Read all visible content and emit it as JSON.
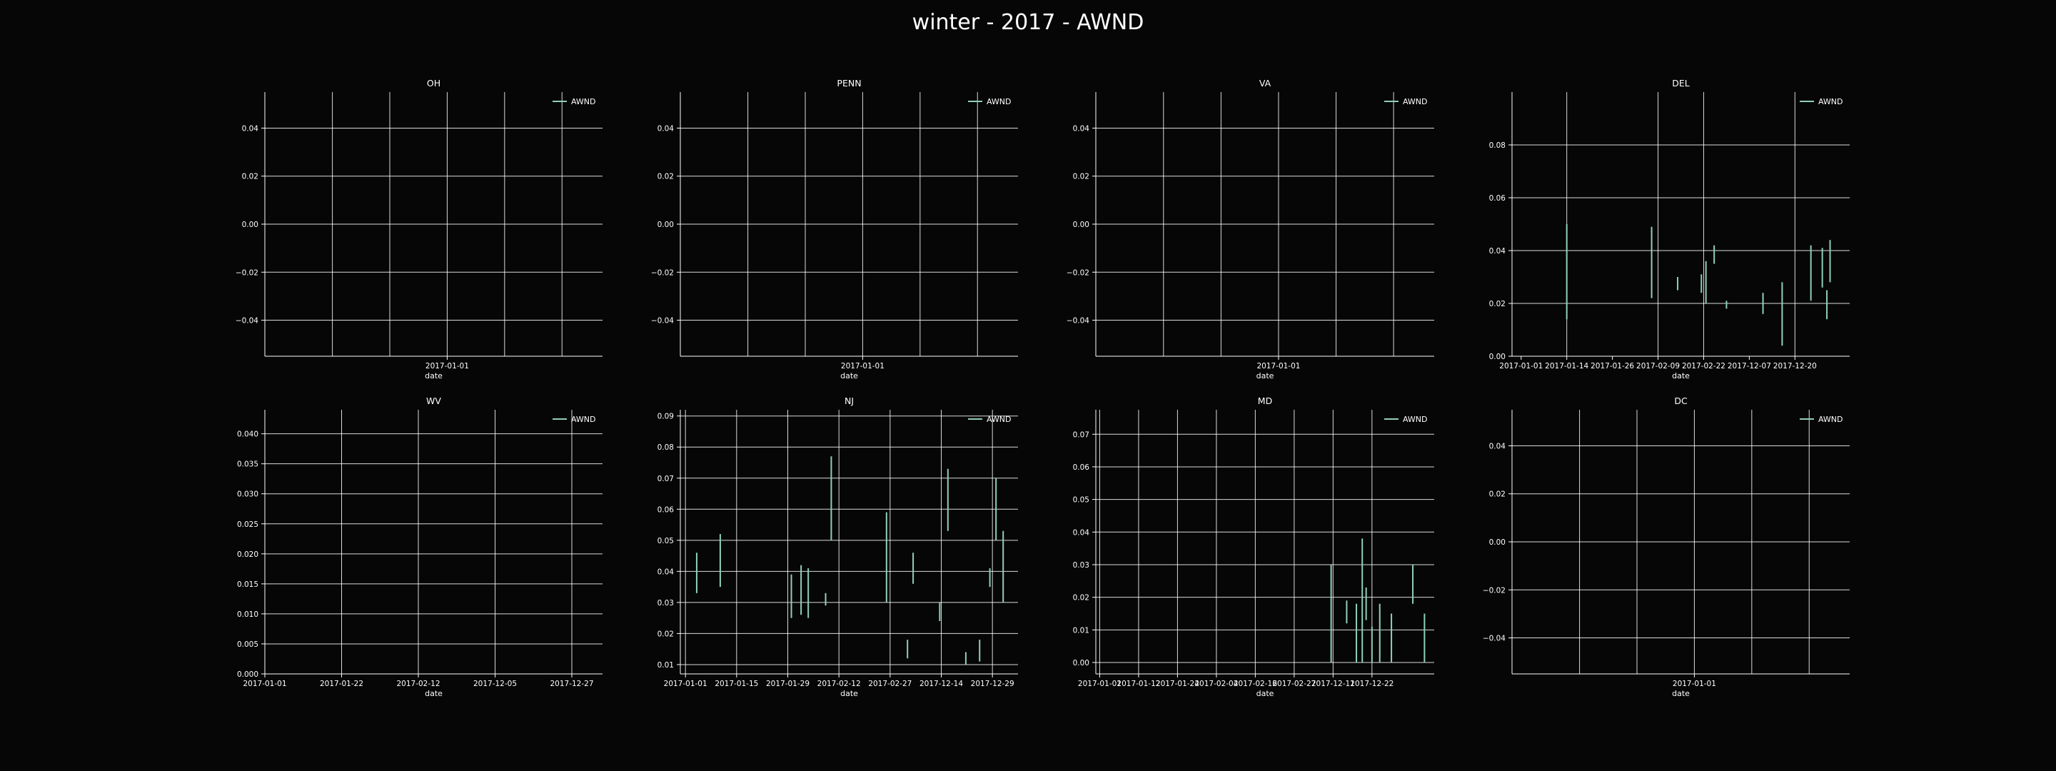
{
  "suptitle": "winter - 2017 - AWND",
  "colors": {
    "background": "#060606",
    "grid": "#ffffff",
    "series": "#8fd0b8",
    "text": "#ffffff"
  },
  "chart_data": [
    {
      "title": "OH",
      "type": "line",
      "xlabel": "date",
      "legend": [
        "AWND"
      ],
      "legend_loc": "top-right",
      "grid": true,
      "xticks": [
        "2017-01-01"
      ],
      "ylim": [
        -0.055,
        0.055
      ],
      "yticks": [
        "−0.04",
        "−0.02",
        "0.00",
        "0.02",
        "0.04"
      ],
      "segments": []
    },
    {
      "title": "PENN",
      "type": "line",
      "xlabel": "date",
      "legend": [
        "AWND"
      ],
      "legend_loc": "top-right",
      "grid": true,
      "xticks": [
        "2017-01-01"
      ],
      "ylim": [
        -0.055,
        0.055
      ],
      "yticks": [
        "−0.04",
        "−0.02",
        "0.00",
        "0.02",
        "0.04"
      ],
      "segments": []
    },
    {
      "title": "VA",
      "type": "line",
      "xlabel": "date",
      "legend": [
        "AWND"
      ],
      "legend_loc": "top-right",
      "grid": true,
      "xticks": [
        "2017-01-01"
      ],
      "ylim": [
        -0.055,
        0.055
      ],
      "yticks": [
        "−0.04",
        "−0.02",
        "0.00",
        "0.02",
        "0.04"
      ],
      "segments": []
    },
    {
      "title": "DEL",
      "type": "line",
      "xlabel": "date",
      "legend": [
        "AWND"
      ],
      "legend_loc": "top-right",
      "grid": true,
      "xticks": [
        "2017-01-01",
        "2017-01-14",
        "2017-01-26",
        "2017-02-09",
        "2017-02-22",
        "2017-12-07",
        "2017-12-20"
      ],
      "ylim": [
        0,
        0.1
      ],
      "yticks": [
        "0.00",
        "0.02",
        "0.04",
        "0.06",
        "0.08"
      ],
      "segments": [
        {
          "x": 1.0,
          "y": [
            0.014,
            0.05
          ]
        },
        {
          "x": 2.86,
          "y": [
            0.022,
            0.049
          ]
        },
        {
          "x": 3.43,
          "y": [
            0.025,
            0.03
          ]
        },
        {
          "x": 3.95,
          "y": [
            0.024,
            0.031
          ]
        },
        {
          "x": 4.05,
          "y": [
            0.02,
            0.036
          ]
        },
        {
          "x": 4.23,
          "y": [
            0.035,
            0.042
          ]
        },
        {
          "x": 4.5,
          "y": [
            0.018,
            0.021
          ]
        },
        {
          "x": 5.3,
          "y": [
            0.016,
            0.024
          ]
        },
        {
          "x": 5.72,
          "y": [
            0.004,
            0.028
          ]
        },
        {
          "x": 6.35,
          "y": [
            0.021,
            0.042
          ]
        },
        {
          "x": 6.6,
          "y": [
            0.026,
            0.041
          ]
        },
        {
          "x": 6.7,
          "y": [
            0.014,
            0.025
          ]
        },
        {
          "x": 6.77,
          "y": [
            0.028,
            0.044
          ]
        }
      ]
    },
    {
      "title": "WV",
      "type": "line",
      "xlabel": "date",
      "legend": [
        "AWND"
      ],
      "legend_loc": "top-right",
      "grid": true,
      "xticks": [
        "2017-01-01",
        "2017-01-22",
        "2017-02-12",
        "2017-12-05",
        "2017-12-27"
      ],
      "ylim": [
        0,
        0.044
      ],
      "yticks": [
        "0.000",
        "0.005",
        "0.010",
        "0.015",
        "0.020",
        "0.025",
        "0.030",
        "0.035",
        "0.040"
      ],
      "segments": []
    },
    {
      "title": "NJ",
      "type": "line",
      "xlabel": "date",
      "legend": [
        "AWND"
      ],
      "legend_loc": "top-right",
      "grid": true,
      "xticks": [
        "2017-01-01",
        "2017-01-15",
        "2017-01-29",
        "2017-02-12",
        "2017-02-27",
        "2017-12-14",
        "2017-12-29"
      ],
      "ylim": [
        0.007,
        0.092
      ],
      "yticks": [
        "0.01",
        "0.02",
        "0.03",
        "0.04",
        "0.05",
        "0.06",
        "0.07",
        "0.08",
        "0.09"
      ],
      "segments": [
        {
          "x": 0.22,
          "y": [
            0.033,
            0.046
          ]
        },
        {
          "x": 0.68,
          "y": [
            0.035,
            0.052
          ]
        },
        {
          "x": 2.07,
          "y": [
            0.025,
            0.039
          ]
        },
        {
          "x": 2.26,
          "y": [
            0.026,
            0.042
          ]
        },
        {
          "x": 2.4,
          "y": [
            0.025,
            0.041
          ]
        },
        {
          "x": 2.74,
          "y": [
            0.029,
            0.033
          ]
        },
        {
          "x": 2.85,
          "y": [
            0.05,
            0.077
          ]
        },
        {
          "x": 3.93,
          "y": [
            0.03,
            0.059
          ]
        },
        {
          "x": 4.34,
          "y": [
            0.012,
            0.018
          ]
        },
        {
          "x": 4.45,
          "y": [
            0.036,
            0.046
          ]
        },
        {
          "x": 4.97,
          "y": [
            0.024,
            0.03
          ]
        },
        {
          "x": 5.13,
          "y": [
            0.053,
            0.073
          ]
        },
        {
          "x": 5.48,
          "y": [
            0.01,
            0.014
          ]
        },
        {
          "x": 5.75,
          "y": [
            0.011,
            0.018
          ]
        },
        {
          "x": 5.95,
          "y": [
            0.035,
            0.041
          ]
        },
        {
          "x": 6.07,
          "y": [
            0.05,
            0.07
          ]
        },
        {
          "x": 6.21,
          "y": [
            0.03,
            0.053
          ]
        }
      ]
    },
    {
      "title": "MD",
      "type": "line",
      "xlabel": "date",
      "legend": [
        "AWND"
      ],
      "legend_loc": "top-right",
      "grid": true,
      "xticks": [
        "2017-01-01",
        "2017-01-12",
        "2017-01-24",
        "2017-02-04",
        "2017-02-16",
        "2017-02-27",
        "2017-12-11",
        "2017-12-22"
      ],
      "ylim": [
        -0.0035,
        0.0775
      ],
      "yticks": [
        "0.00",
        "0.01",
        "0.02",
        "0.03",
        "0.04",
        "0.05",
        "0.06",
        "0.07"
      ],
      "segments": [
        {
          "x": 5.95,
          "y": [
            0.0,
            0.03
          ]
        },
        {
          "x": 6.35,
          "y": [
            0.012,
            0.019
          ]
        },
        {
          "x": 6.6,
          "y": [
            0.0,
            0.018
          ]
        },
        {
          "x": 6.75,
          "y": [
            0.0,
            0.038
          ]
        },
        {
          "x": 6.85,
          "y": [
            0.013,
            0.023
          ]
        },
        {
          "x": 7.0,
          "y": [
            0.0,
            0.011
          ]
        },
        {
          "x": 7.2,
          "y": [
            0.0,
            0.018
          ]
        },
        {
          "x": 7.5,
          "y": [
            0.0,
            0.015
          ]
        },
        {
          "x": 8.05,
          "y": [
            0.018,
            0.03
          ]
        },
        {
          "x": 8.35,
          "y": [
            0.0,
            0.015
          ]
        }
      ]
    },
    {
      "title": "DC",
      "type": "line",
      "xlabel": "date",
      "legend": [
        "AWND"
      ],
      "legend_loc": "top-right",
      "grid": true,
      "xticks": [
        "2017-01-01"
      ],
      "ylim": [
        -0.055,
        0.055
      ],
      "yticks": [
        "−0.04",
        "−0.02",
        "0.00",
        "0.02",
        "0.04"
      ],
      "segments": []
    }
  ]
}
